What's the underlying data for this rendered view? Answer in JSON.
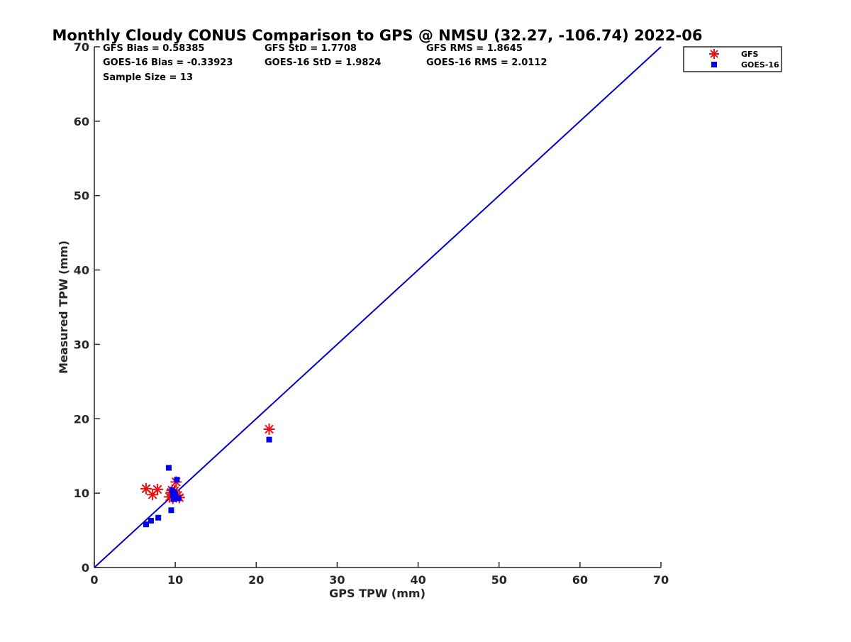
{
  "chart_data": {
    "type": "scatter",
    "title": "Monthly Cloudy CONUS Comparison to GPS @ NMSU (32.27, -106.74) 2022-06",
    "xlabel": "GPS TPW (mm)",
    "ylabel": "Measured TPW (mm)",
    "xlim": [
      0,
      70
    ],
    "ylim": [
      0,
      70
    ],
    "xticks": [
      "0",
      "10",
      "20",
      "30",
      "40",
      "50",
      "60",
      "70"
    ],
    "yticks": [
      "0",
      "10",
      "20",
      "30",
      "40",
      "50",
      "60",
      "70"
    ],
    "grid": false,
    "legend_position": "top-right",
    "reference_line": {
      "x": [
        0,
        70
      ],
      "y": [
        0,
        70
      ],
      "color": "#0000cc"
    },
    "stats": [
      [
        "GFS Bias = 0.58385",
        "GFS StD = 1.7708",
        "GFS RMS = 1.8645"
      ],
      [
        "GOES-16 Bias = -0.33923",
        "GOES-16 StD = 1.9824",
        "GOES-16 RMS = 2.0112"
      ],
      [
        "Sample Size = 13"
      ]
    ],
    "series": [
      {
        "name": "GFS",
        "marker": "asterisk",
        "color": "#ee1111",
        "points": [
          [
            6.4,
            10.6
          ],
          [
            7.2,
            9.8
          ],
          [
            7.8,
            10.5
          ],
          [
            9.5,
            10.1
          ],
          [
            9.3,
            9.5
          ],
          [
            9.7,
            9.3
          ],
          [
            9.9,
            10.3
          ],
          [
            10.1,
            11.5
          ],
          [
            10.3,
            9.7
          ],
          [
            9.8,
            9.8
          ],
          [
            10.5,
            9.4
          ],
          [
            9.6,
            10.4
          ],
          [
            21.6,
            18.6
          ]
        ]
      },
      {
        "name": "GOES-16",
        "marker": "square",
        "color": "#0000ee",
        "points": [
          [
            6.4,
            5.8
          ],
          [
            7.0,
            6.3
          ],
          [
            7.9,
            6.7
          ],
          [
            9.2,
            13.4
          ],
          [
            9.5,
            7.7
          ],
          [
            9.6,
            10.4
          ],
          [
            9.7,
            9.7
          ],
          [
            9.8,
            9.2
          ],
          [
            10.0,
            9.8
          ],
          [
            10.2,
            11.8
          ],
          [
            10.4,
            9.3
          ],
          [
            9.9,
            10.1
          ],
          [
            21.6,
            17.2
          ]
        ]
      }
    ]
  }
}
